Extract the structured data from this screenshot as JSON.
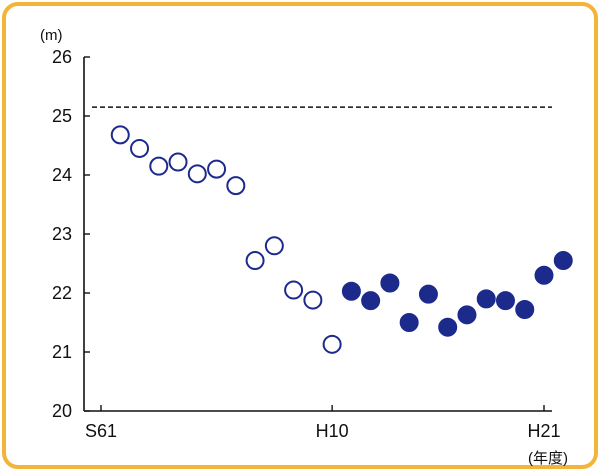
{
  "colors": {
    "border": "#f4b43a",
    "marker": "#1c2a8c",
    "axis": "#111111"
  },
  "chart_data": {
    "type": "scatter",
    "y_unit_label": "(m)",
    "x_unit_label": "(年度)",
    "ylim": [
      20,
      26
    ],
    "y_ticks": [
      "20",
      "21",
      "22",
      "23",
      "24",
      "25",
      "26"
    ],
    "x_ticks": [
      {
        "label": "S61",
        "year": 1986
      },
      {
        "label": "H10",
        "year": 1998
      },
      {
        "label": "H21",
        "year": 2009
      }
    ],
    "xlim": [
      1986,
      2009
    ],
    "reference_line": {
      "y": 25.15,
      "style": "dashed"
    },
    "grid": false,
    "legend": "none",
    "series": [
      {
        "marker": "open-circle",
        "points": [
          {
            "x": 1987,
            "y": 24.68
          },
          {
            "x": 1988,
            "y": 24.45
          },
          {
            "x": 1989,
            "y": 24.15
          },
          {
            "x": 1990,
            "y": 24.22
          },
          {
            "x": 1991,
            "y": 24.02
          },
          {
            "x": 1992,
            "y": 24.1
          },
          {
            "x": 1993,
            "y": 23.82
          },
          {
            "x": 1994,
            "y": 22.55
          },
          {
            "x": 1995,
            "y": 22.8
          },
          {
            "x": 1996,
            "y": 22.05
          },
          {
            "x": 1997,
            "y": 21.88
          },
          {
            "x": 1998,
            "y": 21.13
          }
        ]
      },
      {
        "marker": "filled-circle",
        "points": [
          {
            "x": 1999,
            "y": 22.03
          },
          {
            "x": 2000,
            "y": 21.87
          },
          {
            "x": 2001,
            "y": 22.17
          },
          {
            "x": 2002,
            "y": 21.5
          },
          {
            "x": 2003,
            "y": 21.98
          },
          {
            "x": 2004,
            "y": 21.42
          },
          {
            "x": 2005,
            "y": 21.63
          },
          {
            "x": 2006,
            "y": 21.9
          },
          {
            "x": 2007,
            "y": 21.87
          },
          {
            "x": 2008,
            "y": 21.72
          },
          {
            "x": 2009,
            "y": 22.3
          },
          {
            "x": 2010,
            "y": 22.55
          }
        ]
      }
    ]
  }
}
